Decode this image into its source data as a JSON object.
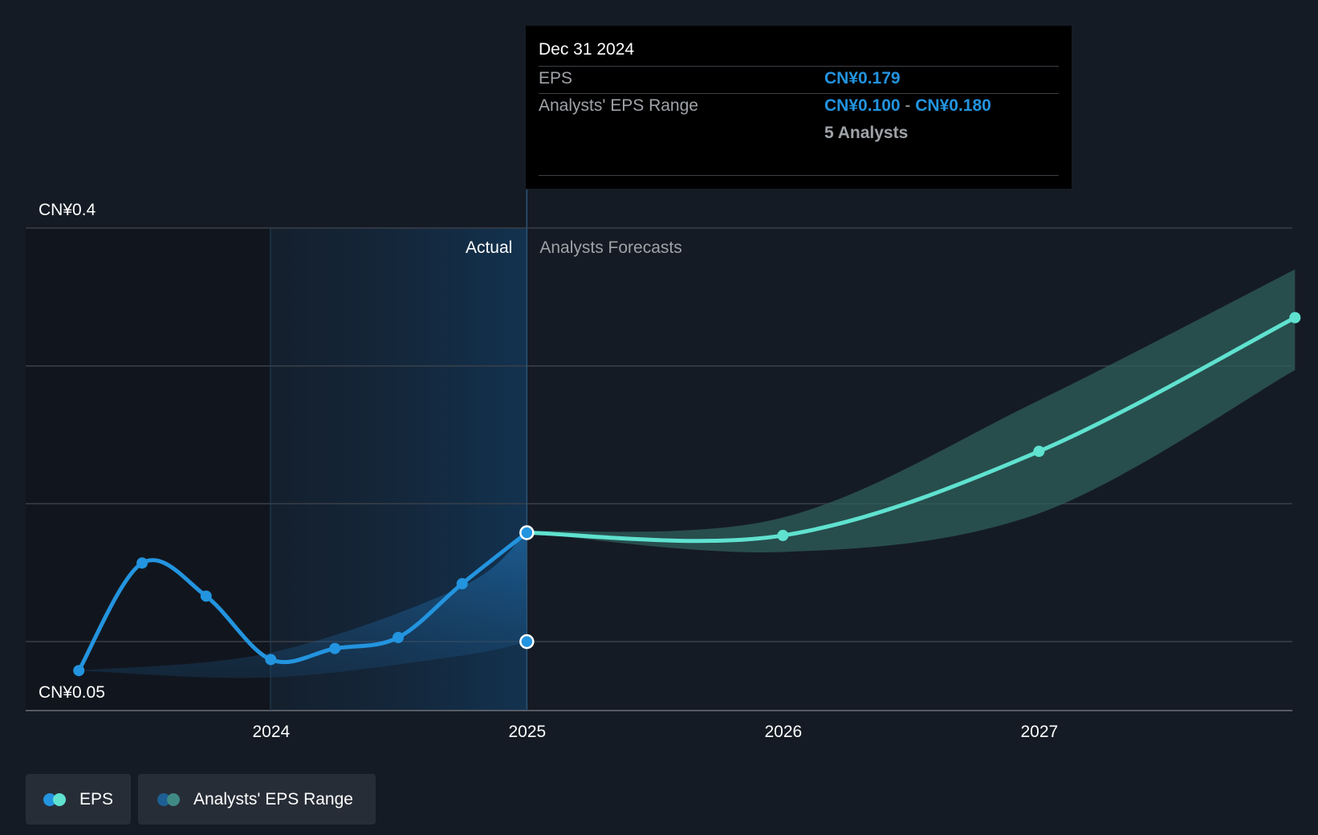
{
  "chart_data": {
    "type": "line",
    "ylim": [
      0.05,
      0.4
    ],
    "y_tick_labels": [
      "CN¥0.4",
      "CN¥0.05"
    ],
    "x_tick_labels": [
      "2024",
      "2025",
      "2026",
      "2027"
    ],
    "sections": {
      "actual_label": "Actual",
      "forecast_label": "Analysts Forecasts"
    },
    "series": [
      {
        "name": "EPS",
        "kind": "actual",
        "color": "#2394df",
        "points": [
          {
            "x": "2023-03-31",
            "y": 0.079
          },
          {
            "x": "2023-06-30",
            "y": 0.157
          },
          {
            "x": "2023-09-30",
            "y": 0.133
          },
          {
            "x": "2023-12-31",
            "y": 0.087
          },
          {
            "x": "2024-03-31",
            "y": 0.095
          },
          {
            "x": "2024-06-30",
            "y": 0.103
          },
          {
            "x": "2024-09-30",
            "y": 0.142
          },
          {
            "x": "2024-12-31",
            "y": 0.179
          }
        ]
      },
      {
        "name": "EPS",
        "kind": "forecast",
        "color": "#5fe2cf",
        "points": [
          {
            "x": "2024-12-31",
            "y": 0.179
          },
          {
            "x": "2025-12-31",
            "y": 0.177
          },
          {
            "x": "2026-12-31",
            "y": 0.238
          },
          {
            "x": "2027-12-31",
            "y": 0.335
          }
        ]
      },
      {
        "name": "Analysts' EPS Range",
        "kind": "range",
        "color": "#2394df",
        "points": [
          {
            "x": "2023-03-31",
            "low": 0.079,
            "high": 0.079
          },
          {
            "x": "2023-12-31",
            "low": 0.074,
            "high": 0.092
          },
          {
            "x": "2024-09-30",
            "low": 0.09,
            "high": 0.14
          },
          {
            "x": "2024-12-31",
            "low": 0.1,
            "high": 0.18
          }
        ]
      },
      {
        "name": "Analysts' EPS Range",
        "kind": "range-forecast",
        "color": "#2f5f5b",
        "points": [
          {
            "x": "2024-12-31",
            "low": 0.179,
            "high": 0.18
          },
          {
            "x": "2025-12-31",
            "low": 0.165,
            "high": 0.19
          },
          {
            "x": "2026-12-31",
            "low": 0.193,
            "high": 0.275
          },
          {
            "x": "2027-12-31",
            "low": 0.297,
            "high": 0.37
          }
        ]
      }
    ],
    "range_marker": {
      "x": "2024-12-31",
      "y": 0.1
    }
  },
  "tooltip": {
    "date": "Dec 31 2024",
    "eps_label": "EPS",
    "eps_value": "CN¥0.179",
    "range_label": "Analysts' EPS Range",
    "range_low": "CN¥0.100",
    "range_sep": "-",
    "range_high": "CN¥0.180",
    "analysts": "5 Analysts"
  },
  "legend": {
    "eps_label": "EPS",
    "range_label": "Analysts' EPS Range"
  },
  "colors": {
    "background": "#151b24",
    "eps_actual": "#2394df",
    "eps_forecast": "#5fe2cf",
    "range_forecast": "#2f5f5b",
    "grid": "#39404a"
  }
}
